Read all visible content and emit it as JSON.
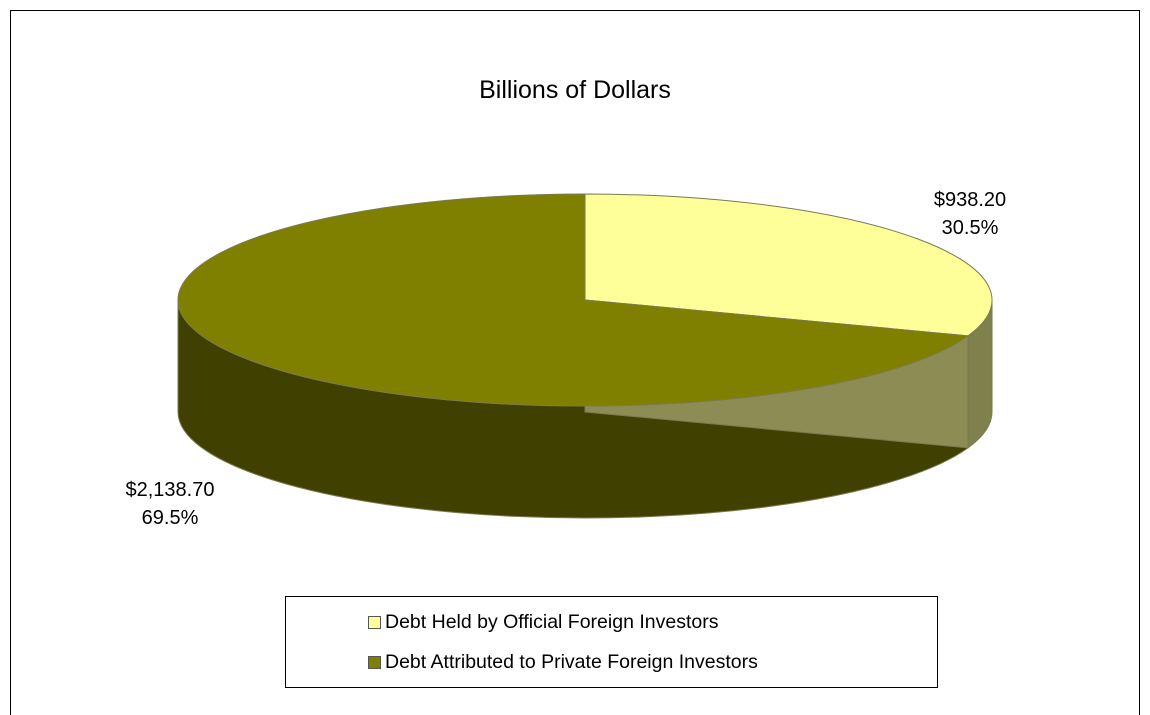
{
  "chart_data": {
    "type": "pie",
    "title": "Billions of Dollars",
    "units": "Billions of Dollars",
    "slices": [
      {
        "label": "Debt Held by Official Foreign Investors",
        "value": 938.2,
        "value_text": "$938.20",
        "percent_text": "30.5%",
        "color": "#FFFF99"
      },
      {
        "label": "Debt Attributed to Private Foreign Investors",
        "value": 2138.7,
        "value_text": "$2,138.70",
        "percent_text": "69.5%",
        "color": "#808000"
      }
    ],
    "legend_position": "bottom",
    "style": "3d-pie"
  }
}
